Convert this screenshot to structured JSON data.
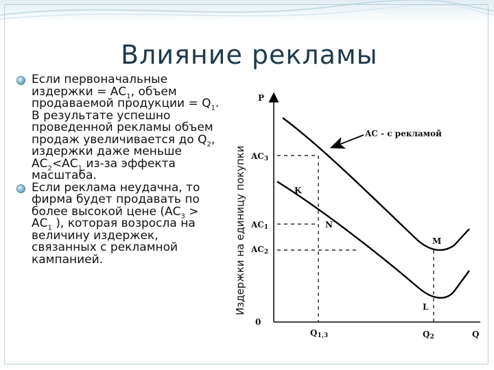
{
  "slide": {
    "title": "Влияние рекламы",
    "bullets": [
      {
        "parts": [
          {
            "t": "Если первоначальные издержки = АС"
          },
          {
            "t": "1",
            "sub": true
          },
          {
            "t": ", объем продаваемой продукции = Q"
          },
          {
            "t": "1",
            "sub": true
          },
          {
            "t": ". В результате успешно проведенной рекламы объем продаж увеличивается до Q"
          },
          {
            "t": "2",
            "sub": true
          },
          {
            "t": ", издержки даже меньше АС"
          },
          {
            "t": "2",
            "sub": true
          },
          {
            "t": "<АС"
          },
          {
            "t": "1",
            "sub": true
          },
          {
            "t": " из-за эффекта масштаба."
          }
        ]
      },
      {
        "parts": [
          {
            "t": "Если реклама неудачна, то фирма будет продавать по более высокой цене (АС"
          },
          {
            "t": "3",
            "sub": true
          },
          {
            "t": " > АС"
          },
          {
            "t": "1",
            "sub": true
          },
          {
            "t": " ), которая возросла на величину издержек, связанных с рекламной кампанией."
          }
        ]
      }
    ]
  },
  "diagram": {
    "y_axis_title": "Издержки на единицу покупки",
    "p_label": "P",
    "origin_label": "0",
    "q_label": "Q",
    "ac3_label": "AC",
    "ac3_sub": "3",
    "ac1_label": "AC",
    "ac1_sub": "1",
    "ac2_label": "AC",
    "ac2_sub": "2",
    "q13_label": "Q",
    "q13_sub": "1,3",
    "q2_label": "Q",
    "q2_sub": "2",
    "curve_label": "AC - с рекламой",
    "point_k": "K",
    "point_n": "N",
    "point_m": "M",
    "point_l": "L"
  },
  "colors": {
    "title": "#1f3b4d",
    "bullet": "#5f9bb8",
    "curves": "#000000",
    "band": "#e2edf2"
  }
}
